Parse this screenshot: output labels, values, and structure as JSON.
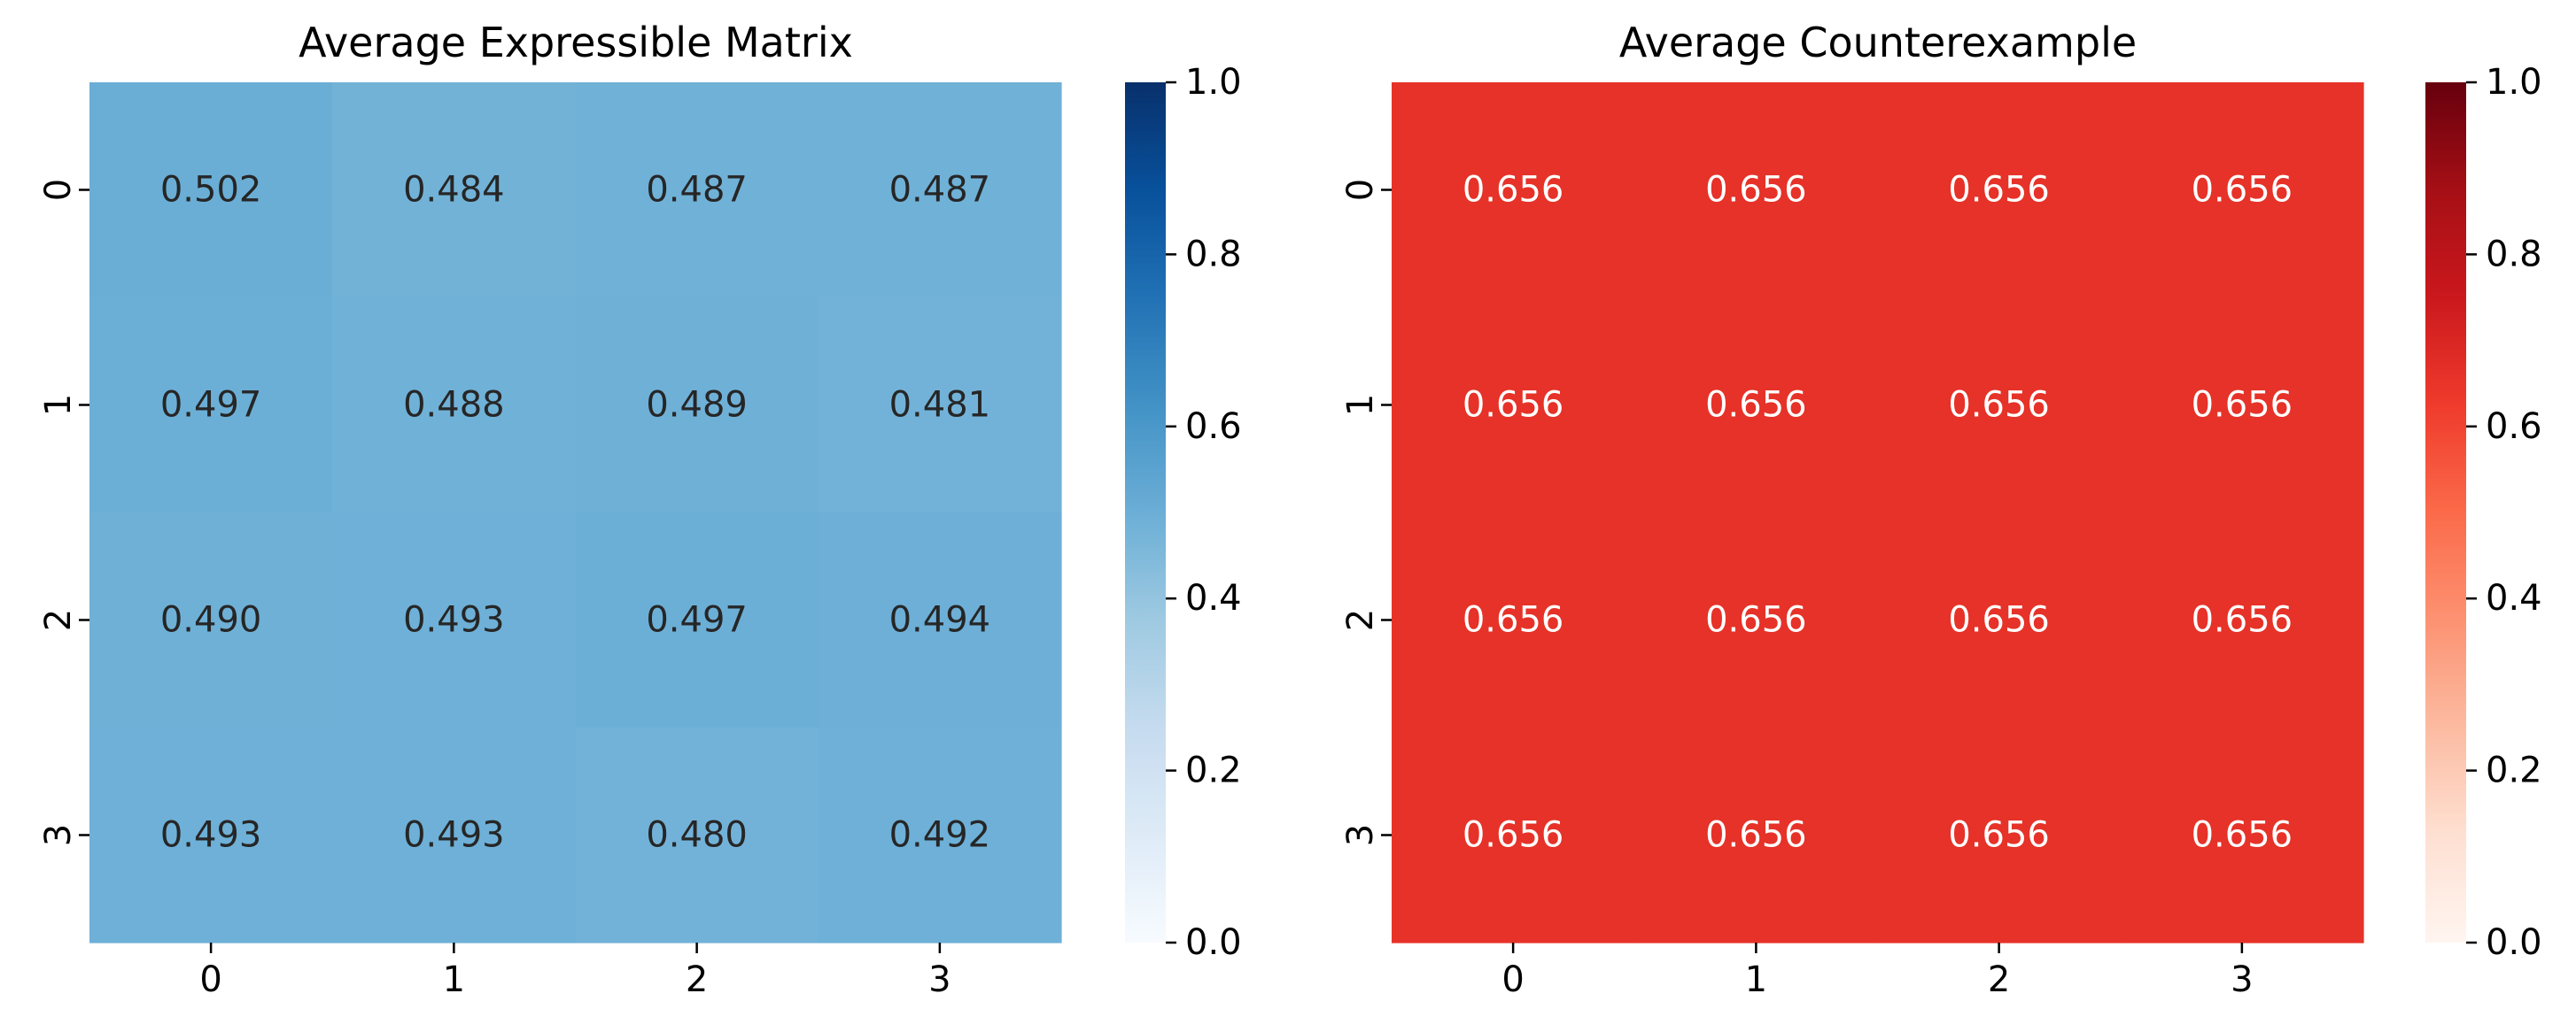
{
  "chart_data": [
    {
      "type": "heatmap",
      "title": "Average Expressible Matrix",
      "colormap": "Blues",
      "x_categories": [
        "0",
        "1",
        "2",
        "3"
      ],
      "y_categories": [
        "0",
        "1",
        "2",
        "3"
      ],
      "values": [
        [
          0.502,
          0.484,
          0.487,
          0.487
        ],
        [
          0.497,
          0.488,
          0.489,
          0.481
        ],
        [
          0.49,
          0.493,
          0.497,
          0.494
        ],
        [
          0.493,
          0.493,
          0.48,
          0.492
        ]
      ],
      "cell_labels": [
        [
          "0.502",
          "0.484",
          "0.487",
          "0.487"
        ],
        [
          "0.497",
          "0.488",
          "0.489",
          "0.481"
        ],
        [
          "0.490",
          "0.493",
          "0.497",
          "0.494"
        ],
        [
          "0.493",
          "0.493",
          "0.480",
          "0.492"
        ]
      ],
      "vmin": 0.0,
      "vmax": 1.0,
      "colorbar_ticks": [
        "0.0",
        "0.2",
        "0.4",
        "0.6",
        "0.8",
        "1.0"
      ],
      "xlabel": "",
      "ylabel": ""
    },
    {
      "type": "heatmap",
      "title": "Average Counterexample",
      "colormap": "Reds",
      "x_categories": [
        "0",
        "1",
        "2",
        "3"
      ],
      "y_categories": [
        "0",
        "1",
        "2",
        "3"
      ],
      "values": [
        [
          0.656,
          0.656,
          0.656,
          0.656
        ],
        [
          0.656,
          0.656,
          0.656,
          0.656
        ],
        [
          0.656,
          0.656,
          0.656,
          0.656
        ],
        [
          0.656,
          0.656,
          0.656,
          0.656
        ]
      ],
      "cell_labels": [
        [
          "0.656",
          "0.656",
          "0.656",
          "0.656"
        ],
        [
          "0.656",
          "0.656",
          "0.656",
          "0.656"
        ],
        [
          "0.656",
          "0.656",
          "0.656",
          "0.656"
        ],
        [
          "0.656",
          "0.656",
          "0.656",
          "0.656"
        ]
      ],
      "vmin": 0.0,
      "vmax": 1.0,
      "colorbar_ticks": [
        "0.0",
        "0.2",
        "0.4",
        "0.6",
        "0.8",
        "1.0"
      ],
      "xlabel": "",
      "ylabel": ""
    }
  ]
}
